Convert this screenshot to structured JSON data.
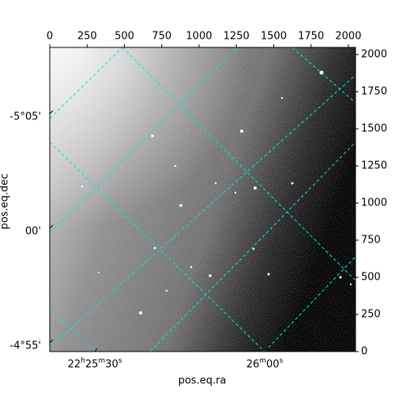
{
  "chart_data": {
    "type": "image",
    "xlabel": "pos.eq.ra",
    "ylabel": "pos.eq.dec",
    "xlim": [
      0,
      2048
    ],
    "ylim": [
      0,
      2048
    ],
    "xticks": [
      0,
      250,
      500,
      750,
      1000,
      1250,
      1500,
      1750,
      2000
    ],
    "yticks": [
      0,
      250,
      500,
      750,
      1000,
      1250,
      1500,
      1750,
      2000
    ],
    "ra_labels": [
      "22h25m30s",
      "26m00s"
    ],
    "dec_labels": [
      "-5°05'",
      "00'",
      "-4°55'"
    ],
    "grid_color": "#00e5e5"
  }
}
